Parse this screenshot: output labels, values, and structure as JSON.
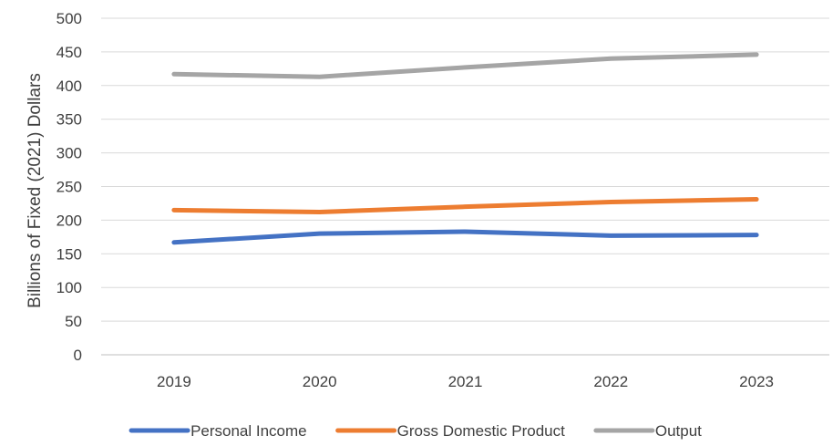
{
  "chart_data": {
    "type": "line",
    "title": "",
    "xlabel": "",
    "ylabel": "Billions of Fixed (2021) Dollars",
    "categories": [
      "2019",
      "2020",
      "2021",
      "2022",
      "2023"
    ],
    "ylim": [
      0,
      500
    ],
    "yticks": [
      0,
      50,
      100,
      150,
      200,
      250,
      300,
      350,
      400,
      450,
      500
    ],
    "grid": true,
    "legend_position": "bottom",
    "series": [
      {
        "name": "Personal Income",
        "color": "#4472C4",
        "values": [
          167,
          180,
          183,
          177,
          178
        ]
      },
      {
        "name": "Gross Domestic Product",
        "color": "#ED7D31",
        "values": [
          215,
          212,
          220,
          227,
          231
        ]
      },
      {
        "name": "Output",
        "color": "#A5A5A5",
        "values": [
          417,
          413,
          427,
          440,
          446
        ]
      }
    ]
  }
}
